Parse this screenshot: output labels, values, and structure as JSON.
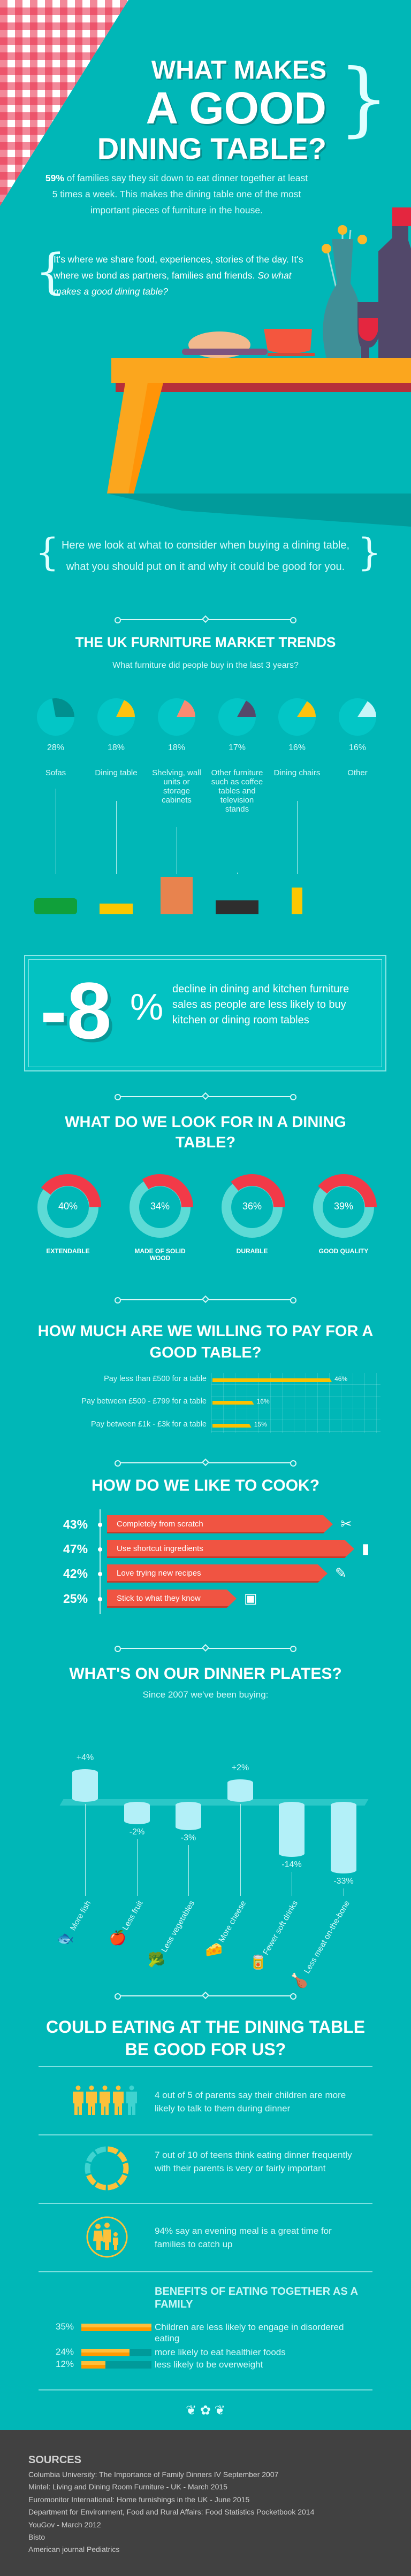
{
  "header": {
    "title_line1": "WHAT MAKES",
    "title_line2": "A GOOD",
    "title_line3": "DINING TABLE?",
    "intro_highlight": "59%",
    "intro_text": " of families say they sit down to eat dinner together at least 5 times a week. This makes the dining table one of the most important pieces of furniture in the house.",
    "quote_text": "It's where we share food, experiences, stories of the day. It's where we bond as partners, families and friends. ",
    "quote_italic": "So what makes a good dining table?",
    "overview": "Here we look at what to consider when buying a dining table, what you should put on it and why it could be good for you."
  },
  "colors": {
    "background": "#00b7b7",
    "red": "#f0433d",
    "coral": "#f05442",
    "yellow": "#fcc100",
    "footer": "#414141"
  },
  "market": {
    "title": "THE UK FURNITURE MARKET TRENDS",
    "subtitle": "What furniture did people buy in the last 3 years?",
    "items": [
      {
        "pct": "28%",
        "value": 28,
        "label": "Sofas",
        "color": "#00908f",
        "icon": "sofa-icon"
      },
      {
        "pct": "18%",
        "value": 18,
        "label": "Dining table",
        "color": "#ffc20e",
        "icon": "dining-table-icon"
      },
      {
        "pct": "18%",
        "value": 18,
        "label": "Shelving, wall units or storage cabinets",
        "color": "#fa8a72",
        "icon": "bookshelf-icon"
      },
      {
        "pct": "17%",
        "value": 17,
        "label": "Other furniture such as coffee tables and television stands",
        "color": "#55486a",
        "icon": "tv-stand-icon"
      },
      {
        "pct": "16%",
        "value": 16,
        "label": "Dining chairs",
        "color": "#ffc20e",
        "icon": "chair-icon"
      },
      {
        "pct": "16%",
        "value": 16,
        "label": "Other",
        "color": "#c8f5f8",
        "icon": ""
      }
    ]
  },
  "decline": {
    "number": "-8",
    "unit": "%",
    "text": "decline in dining and kitchen furniture sales as people are less likely to buy kitchen or dining room tables"
  },
  "lookfor": {
    "title": "WHAT DO WE LOOK FOR IN A DINING TABLE?",
    "items": [
      {
        "pct": "40%",
        "value": 40,
        "label": "EXTENDABLE"
      },
      {
        "pct": "34%",
        "value": 34,
        "label": "MADE OF SOLID WOOD"
      },
      {
        "pct": "36%",
        "value": 36,
        "label": "DURABLE"
      },
      {
        "pct": "39%",
        "value": 39,
        "label": "GOOD QUALITY"
      }
    ]
  },
  "pay": {
    "title": "HOW MUCH ARE WE WILLING TO PAY FOR A GOOD TABLE?",
    "items": [
      {
        "label": "Pay less than £500 for a table",
        "pct": "46%",
        "value": 46
      },
      {
        "label": "Pay between £500 - £799 for a table",
        "pct": "16%",
        "value": 16
      },
      {
        "label": "Pay between £1k - £3k for a table",
        "pct": "15%",
        "value": 15
      }
    ]
  },
  "cook": {
    "title": "HOW DO WE LIKE TO COOK?",
    "items": [
      {
        "pct": "43%",
        "value": 43,
        "label": "Completely from scratch",
        "icon": "utensils-icon"
      },
      {
        "pct": "47%",
        "value": 47,
        "label": "Use shortcut ingredients",
        "icon": "jar-icon"
      },
      {
        "pct": "42%",
        "value": 42,
        "label": "Love trying new recipes",
        "icon": "recipe-icon"
      },
      {
        "pct": "25%",
        "value": 25,
        "label": "Stick to what they know",
        "icon": "cookbook-icon"
      }
    ]
  },
  "plates": {
    "title": "WHAT'S ON OUR DINNER PLATES?",
    "subtitle": "Since 2007 we've been buying:",
    "items": [
      {
        "pct": "+4%",
        "value": 4,
        "label": "More fish",
        "icon": "fish-icon",
        "emoji": "🐟"
      },
      {
        "pct": "-2%",
        "value": -2,
        "label": "Less fruit",
        "icon": "apple-icon",
        "emoji": "🍎"
      },
      {
        "pct": "-3%",
        "value": -3,
        "label": "Less vegetables",
        "icon": "broccoli-icon",
        "emoji": "🥦"
      },
      {
        "pct": "+2%",
        "value": 2,
        "label": "More cheese",
        "icon": "cheese-icon",
        "emoji": "🧀"
      },
      {
        "pct": "-14%",
        "value": -14,
        "label": "Fewer soft drinks",
        "icon": "soda-can-icon",
        "emoji": "🥫"
      },
      {
        "pct": "-33%",
        "value": -33,
        "label": "Less meat on-the-bone",
        "icon": "drumstick-icon",
        "emoji": "🍗"
      }
    ]
  },
  "good": {
    "title": "COULD EATING AT THE DINING TABLE BE GOOD FOR US?",
    "stat1": "4 out of 5 of parents say their children are more likely to talk to them during dinner",
    "stat2": "7 out of 10 of teens think eating dinner frequently with their parents is very or fairly important",
    "stat3": "94% say an evening meal is a great time for families to catch up",
    "benefits_title": "BENEFITS OF EATING TOGETHER AS A FAMILY",
    "benefits": [
      {
        "pct": "35%",
        "value": 35,
        "label": "Children are less likely to engage in disordered eating"
      },
      {
        "pct": "24%",
        "value": 24,
        "label": "more likely to eat healthier foods"
      },
      {
        "pct": "12%",
        "value": 12,
        "label": "less likely to be overweight"
      }
    ]
  },
  "sources": {
    "title": "SOURCES",
    "items": [
      "Columbia University: The Importance of Family Dinners IV September 2007",
      "Mintel: Living and Dining Room Furniture - UK - March 2015",
      "Euromonitor International: Home furnishings in the UK - June 2015",
      "Department for Environment, Food and Rural Affairs: Food Statistics Pocketbook 2014",
      "YouGov - March 2012",
      "Bisto",
      "American journal Pediatrics"
    ]
  }
}
